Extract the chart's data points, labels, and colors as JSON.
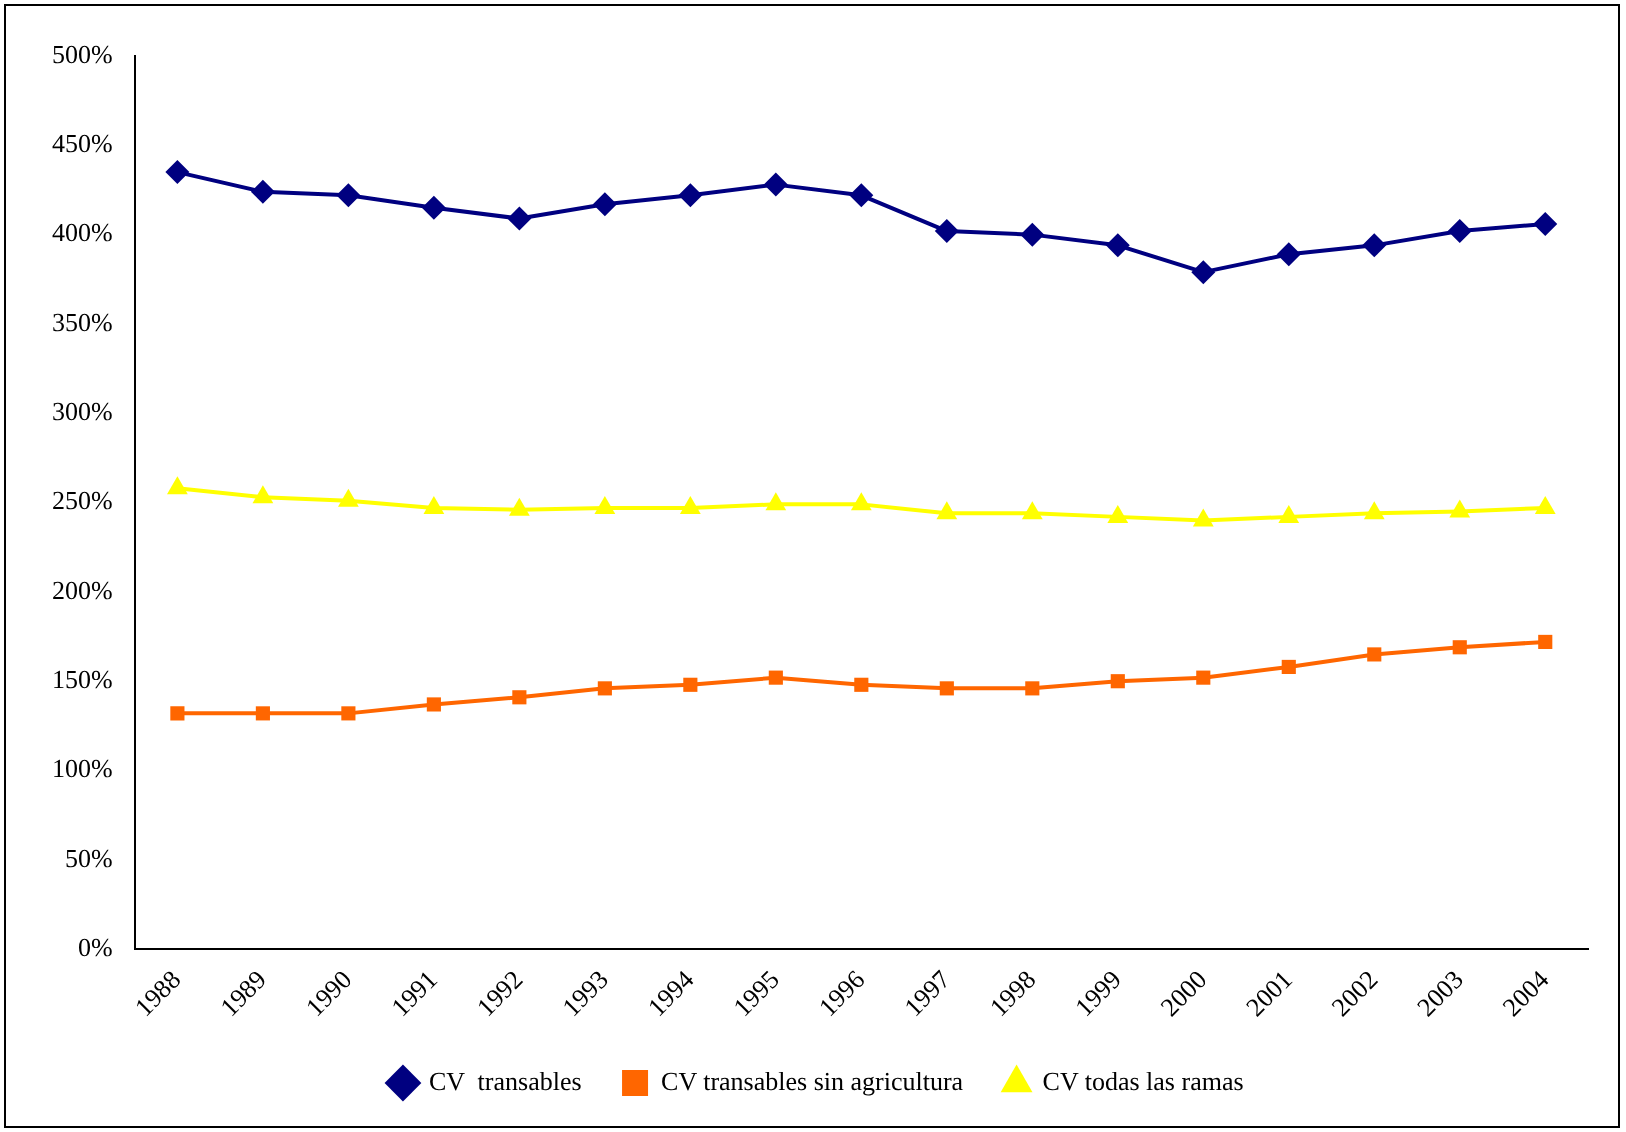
{
  "chart_data": {
    "type": "line",
    "categories": [
      "1988",
      "1989",
      "1990",
      "1991",
      "1992",
      "1993",
      "1994",
      "1995",
      "1996",
      "1997",
      "1998",
      "1999",
      "2000",
      "2001",
      "2002",
      "2003",
      "2004"
    ],
    "series": [
      {
        "name": "CV  transables",
        "color": "#000080",
        "marker": "diamond",
        "values": [
          435,
          424,
          422,
          415,
          409,
          417,
          422,
          428,
          422,
          402,
          400,
          394,
          379,
          389,
          394,
          402,
          406
        ]
      },
      {
        "name": "CV transables sin agricultura",
        "color": "#ff6600",
        "marker": "square",
        "values": [
          132,
          132,
          132,
          137,
          141,
          146,
          148,
          152,
          148,
          146,
          146,
          150,
          152,
          158,
          165,
          169,
          172
        ]
      },
      {
        "name": "CV todas las ramas",
        "color": "#ffff00",
        "marker": "triangle",
        "values": [
          258,
          253,
          251,
          247,
          246,
          247,
          247,
          249,
          249,
          244,
          244,
          242,
          240,
          242,
          244,
          245,
          247
        ]
      }
    ],
    "ylim": [
      0,
      500
    ],
    "yticks": [
      {
        "value": 0,
        "label": "0%"
      },
      {
        "value": 50,
        "label": "50%"
      },
      {
        "value": 100,
        "label": "100%"
      },
      {
        "value": 150,
        "label": "150%"
      },
      {
        "value": 200,
        "label": "200%"
      },
      {
        "value": 250,
        "label": "250%"
      },
      {
        "value": 300,
        "label": "300%"
      },
      {
        "value": 350,
        "label": "350%"
      },
      {
        "value": 400,
        "label": "400%"
      },
      {
        "value": 450,
        "label": "450%"
      },
      {
        "value": 500,
        "label": "500%"
      }
    ],
    "grid": false,
    "legend": "bottom"
  }
}
